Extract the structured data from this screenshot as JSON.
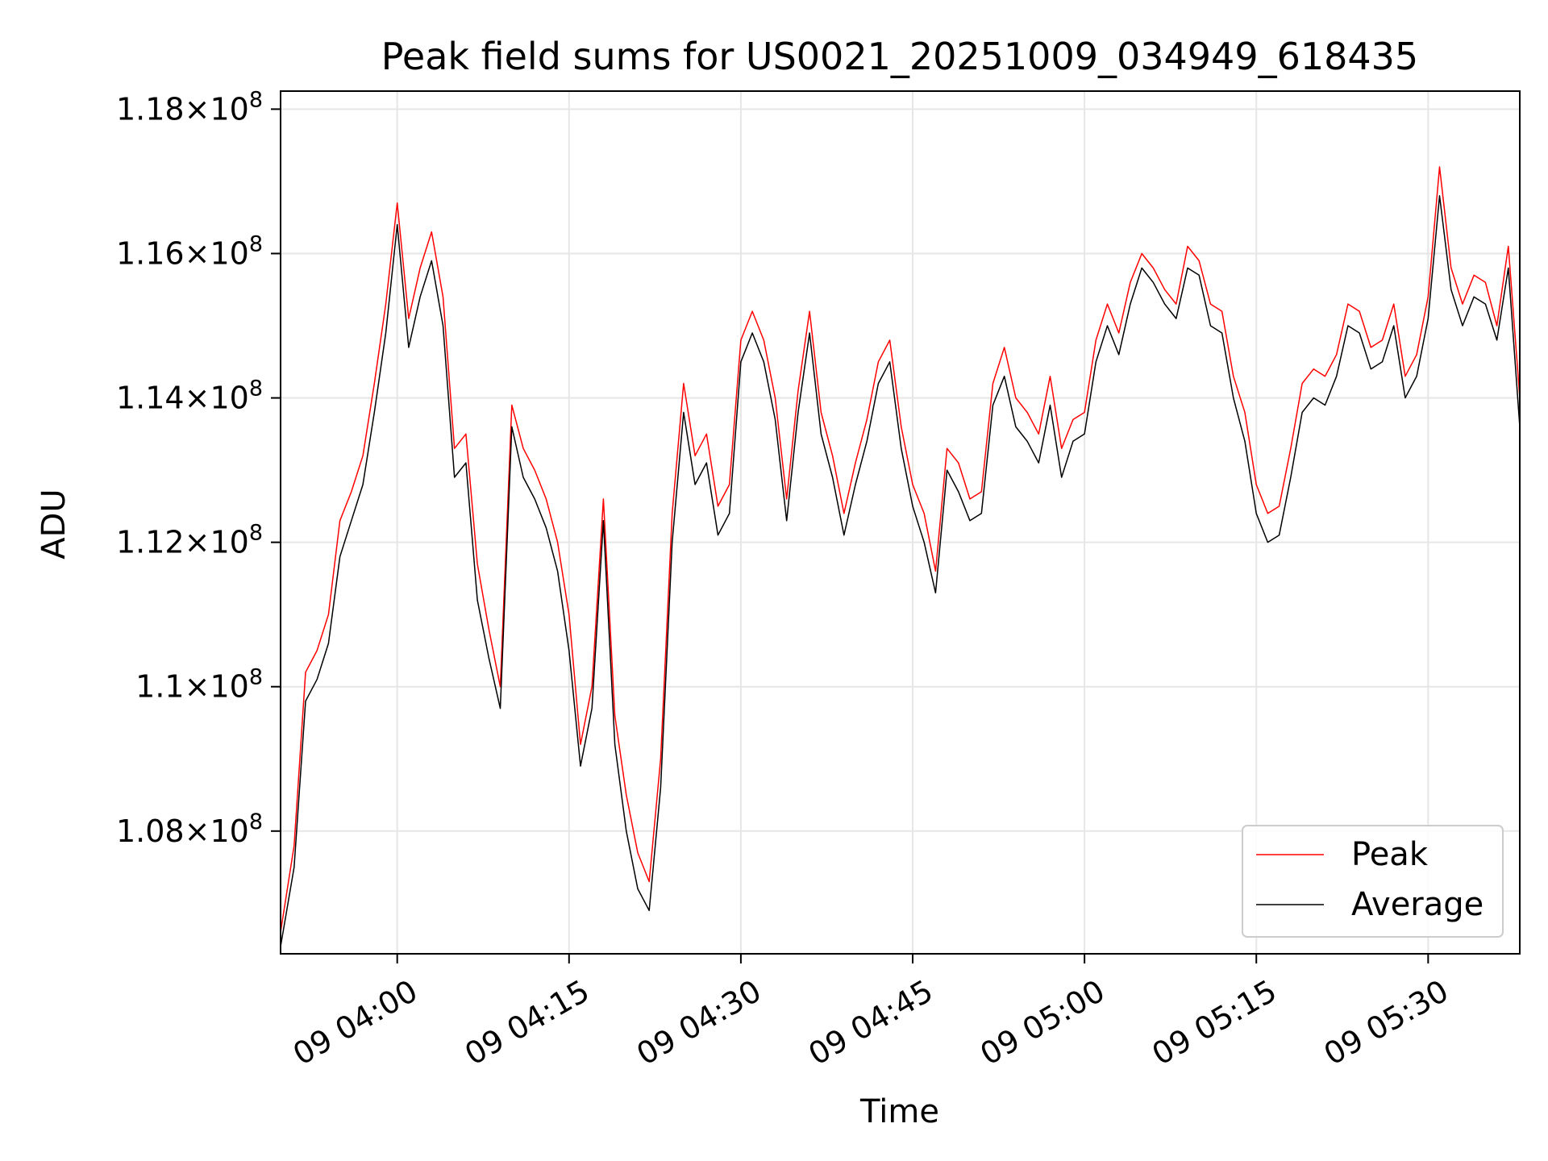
{
  "chart_data": {
    "type": "line",
    "title": "Peak field sums for US0021_20251009_034949_618435",
    "xlabel": "Time",
    "ylabel": "ADU",
    "xlim": [
      "2025-10-09 03:49:49",
      "2025-10-09 05:38:00"
    ],
    "ylim": [
      106300000,
      118250000
    ],
    "grid": true,
    "legend_position": "lower-right",
    "x_ticks": [
      "09 04:00",
      "09 04:15",
      "09 04:30",
      "09 04:45",
      "09 05:00",
      "09 05:15",
      "09 05:30"
    ],
    "y_ticks": [
      {
        "value": 108000000,
        "mantissa": "1.08"
      },
      {
        "value": 110000000,
        "mantissa": "1.1"
      },
      {
        "value": 112000000,
        "mantissa": "1.12"
      },
      {
        "value": 114000000,
        "mantissa": "1.14"
      },
      {
        "value": 116000000,
        "mantissa": "1.16"
      },
      {
        "value": 118000000,
        "mantissa": "1.18"
      }
    ],
    "y_tick_base": "10",
    "y_tick_exponent": "8",
    "x": [
      "2025-10-09 03:49:49",
      "2025-10-09 03:51:00",
      "2025-10-09 03:52:00",
      "2025-10-09 03:53:00",
      "2025-10-09 03:54:00",
      "2025-10-09 03:55:00",
      "2025-10-09 03:56:00",
      "2025-10-09 03:57:00",
      "2025-10-09 03:58:00",
      "2025-10-09 03:59:00",
      "2025-10-09 04:00:00",
      "2025-10-09 04:01:00",
      "2025-10-09 04:02:00",
      "2025-10-09 04:03:00",
      "2025-10-09 04:04:00",
      "2025-10-09 04:05:00",
      "2025-10-09 04:06:00",
      "2025-10-09 04:07:00",
      "2025-10-09 04:08:00",
      "2025-10-09 04:09:00",
      "2025-10-09 04:10:00",
      "2025-10-09 04:11:00",
      "2025-10-09 04:12:00",
      "2025-10-09 04:13:00",
      "2025-10-09 04:14:00",
      "2025-10-09 04:15:00",
      "2025-10-09 04:16:00",
      "2025-10-09 04:17:00",
      "2025-10-09 04:18:00",
      "2025-10-09 04:19:00",
      "2025-10-09 04:20:00",
      "2025-10-09 04:21:00",
      "2025-10-09 04:22:00",
      "2025-10-09 04:23:00",
      "2025-10-09 04:24:00",
      "2025-10-09 04:25:00",
      "2025-10-09 04:26:00",
      "2025-10-09 04:27:00",
      "2025-10-09 04:28:00",
      "2025-10-09 04:29:00",
      "2025-10-09 04:30:00",
      "2025-10-09 04:31:00",
      "2025-10-09 04:32:00",
      "2025-10-09 04:33:00",
      "2025-10-09 04:34:00",
      "2025-10-09 04:35:00",
      "2025-10-09 04:36:00",
      "2025-10-09 04:37:00",
      "2025-10-09 04:38:00",
      "2025-10-09 04:39:00",
      "2025-10-09 04:40:00",
      "2025-10-09 04:41:00",
      "2025-10-09 04:42:00",
      "2025-10-09 04:43:00",
      "2025-10-09 04:44:00",
      "2025-10-09 04:45:00",
      "2025-10-09 04:46:00",
      "2025-10-09 04:47:00",
      "2025-10-09 04:48:00",
      "2025-10-09 04:49:00",
      "2025-10-09 04:50:00",
      "2025-10-09 04:51:00",
      "2025-10-09 04:52:00",
      "2025-10-09 04:53:00",
      "2025-10-09 04:54:00",
      "2025-10-09 04:55:00",
      "2025-10-09 04:56:00",
      "2025-10-09 04:57:00",
      "2025-10-09 04:58:00",
      "2025-10-09 04:59:00",
      "2025-10-09 05:00:00",
      "2025-10-09 05:01:00",
      "2025-10-09 05:02:00",
      "2025-10-09 05:03:00",
      "2025-10-09 05:04:00",
      "2025-10-09 05:05:00",
      "2025-10-09 05:06:00",
      "2025-10-09 05:07:00",
      "2025-10-09 05:08:00",
      "2025-10-09 05:09:00",
      "2025-10-09 05:10:00",
      "2025-10-09 05:11:00",
      "2025-10-09 05:12:00",
      "2025-10-09 05:13:00",
      "2025-10-09 05:14:00",
      "2025-10-09 05:15:00",
      "2025-10-09 05:16:00",
      "2025-10-09 05:17:00",
      "2025-10-09 05:18:00",
      "2025-10-09 05:19:00",
      "2025-10-09 05:20:00",
      "2025-10-09 05:21:00",
      "2025-10-09 05:22:00",
      "2025-10-09 05:23:00",
      "2025-10-09 05:24:00",
      "2025-10-09 05:25:00",
      "2025-10-09 05:26:00",
      "2025-10-09 05:27:00",
      "2025-10-09 05:28:00",
      "2025-10-09 05:29:00",
      "2025-10-09 05:30:00",
      "2025-10-09 05:31:00",
      "2025-10-09 05:32:00",
      "2025-10-09 05:33:00",
      "2025-10-09 05:34:00",
      "2025-10-09 05:35:00",
      "2025-10-09 05:36:00",
      "2025-10-09 05:37:00",
      "2025-10-09 05:38:00"
    ],
    "series": [
      {
        "name": "Peak",
        "color": "#ff0000",
        "values": [
          106600000,
          107800000,
          110200000,
          110500000,
          111000000,
          112300000,
          112700000,
          113200000,
          114200000,
          115300000,
          116700000,
          115100000,
          115800000,
          116300000,
          115400000,
          113300000,
          113500000,
          111700000,
          110800000,
          110000000,
          113900000,
          113300000,
          113000000,
          112600000,
          112000000,
          111000000,
          109200000,
          110000000,
          112600000,
          109600000,
          108500000,
          107700000,
          107300000,
          109000000,
          112400000,
          114200000,
          113200000,
          113500000,
          112500000,
          112800000,
          114800000,
          115200000,
          114800000,
          114000000,
          112600000,
          114100000,
          115200000,
          113800000,
          113200000,
          112400000,
          113100000,
          113700000,
          114500000,
          114800000,
          113600000,
          112800000,
          112400000,
          111600000,
          113300000,
          113100000,
          112600000,
          112700000,
          114200000,
          114700000,
          114000000,
          113800000,
          113500000,
          114300000,
          113300000,
          113700000,
          113800000,
          114800000,
          115300000,
          114900000,
          115600000,
          116000000,
          115800000,
          115500000,
          115300000,
          116100000,
          115900000,
          115300000,
          115200000,
          114300000,
          113800000,
          112800000,
          112400000,
          112500000,
          113300000,
          114200000,
          114400000,
          114300000,
          114600000,
          115300000,
          115200000,
          114700000,
          114800000,
          115300000,
          114300000,
          114600000,
          115400000,
          117200000,
          115800000,
          115300000,
          115700000,
          115600000,
          115000000,
          116100000,
          114000000
        ]
      },
      {
        "name": "Average",
        "color": "#000000",
        "values": [
          106400000,
          107500000,
          109800000,
          110100000,
          110600000,
          111800000,
          112300000,
          112800000,
          113800000,
          114900000,
          116400000,
          114700000,
          115400000,
          115900000,
          115000000,
          112900000,
          113100000,
          111200000,
          110400000,
          109700000,
          113600000,
          112900000,
          112600000,
          112200000,
          111600000,
          110500000,
          108900000,
          109700000,
          112300000,
          109200000,
          108000000,
          107200000,
          106900000,
          108600000,
          112000000,
          113800000,
          112800000,
          113100000,
          112100000,
          112400000,
          114500000,
          114900000,
          114500000,
          113700000,
          112300000,
          113800000,
          114900000,
          113500000,
          112900000,
          112100000,
          112800000,
          113400000,
          114200000,
          114500000,
          113300000,
          112500000,
          112000000,
          111300000,
          113000000,
          112700000,
          112300000,
          112400000,
          113900000,
          114300000,
          113600000,
          113400000,
          113100000,
          113900000,
          112900000,
          113400000,
          113500000,
          114500000,
          115000000,
          114600000,
          115300000,
          115800000,
          115600000,
          115300000,
          115100000,
          115800000,
          115700000,
          115000000,
          114900000,
          114000000,
          113400000,
          112400000,
          112000000,
          112100000,
          112900000,
          113800000,
          114000000,
          113900000,
          114300000,
          115000000,
          114900000,
          114400000,
          114500000,
          115000000,
          114000000,
          114300000,
          115100000,
          116800000,
          115500000,
          115000000,
          115400000,
          115300000,
          114800000,
          115800000,
          113600000
        ]
      }
    ]
  }
}
